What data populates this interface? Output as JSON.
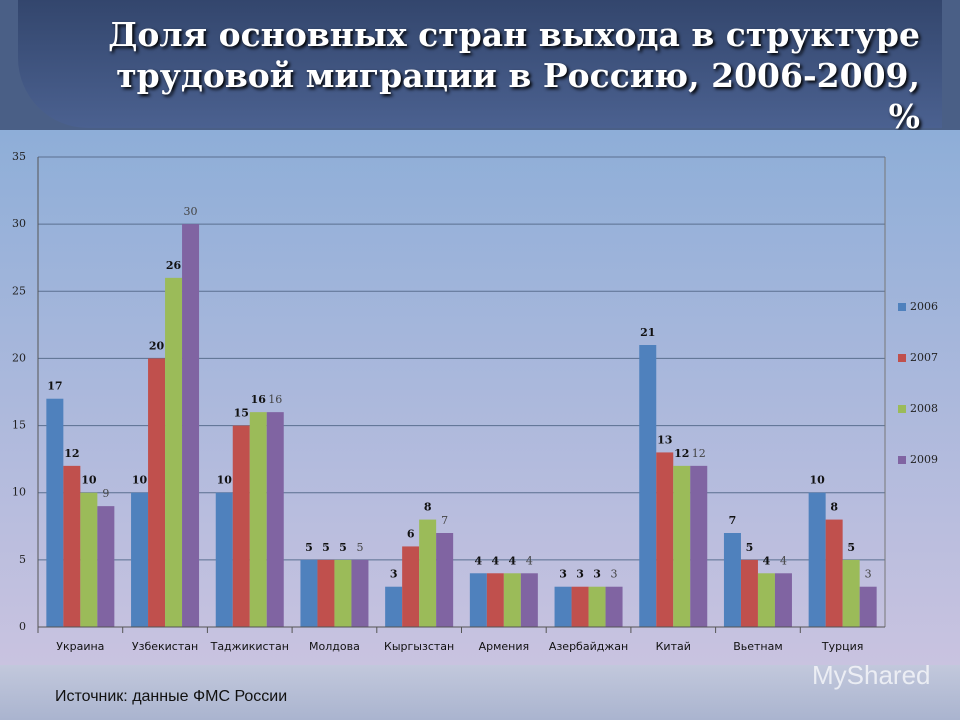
{
  "title": "Доля основных стран выхода в структуре трудовой миграции в Россию, 2006-2009, %",
  "source": "Источник: данные ФМС России",
  "watermark": "MyShared",
  "chart_data": {
    "type": "bar",
    "categories": [
      "Украина",
      "Узбекистан",
      "Таджикистан",
      "Молдова",
      "Кыргызстан",
      "Армения",
      "Азербайджан",
      "Китай",
      "Вьетнам",
      "Турция"
    ],
    "series": [
      {
        "name": "2006",
        "color": "#4f81bd",
        "values": [
          17,
          10,
          10,
          5,
          3,
          4,
          3,
          21,
          7,
          10
        ]
      },
      {
        "name": "2007",
        "color": "#c0504d",
        "values": [
          12,
          20,
          15,
          5,
          6,
          4,
          3,
          13,
          5,
          8
        ]
      },
      {
        "name": "2008",
        "color": "#9bbb59",
        "values": [
          10,
          26,
          16,
          5,
          8,
          4,
          3,
          12,
          4,
          5
        ]
      },
      {
        "name": "2009",
        "color": "#8064a2",
        "values": [
          9,
          30,
          16,
          5,
          7,
          4,
          3,
          12,
          4,
          3
        ]
      }
    ],
    "ylim": [
      0,
      35
    ],
    "yticks": [
      0,
      5,
      10,
      15,
      20,
      25,
      30,
      35
    ],
    "grid": true,
    "legend": "right"
  }
}
